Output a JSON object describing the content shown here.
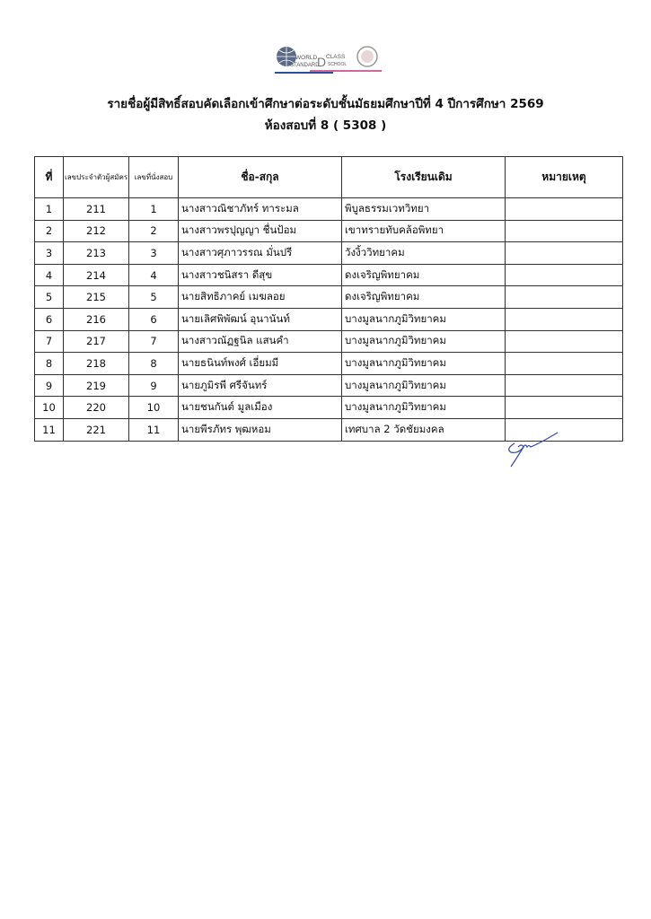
{
  "logo": {
    "text_line1": "WORLD",
    "text_d": "D",
    "text_class": "CLASS",
    "text_standard": "STANDARD",
    "text_school": "SCHOOL"
  },
  "title": "รายชื่อผู้มีสิทธิ์สอบคัดเลือกเข้าศึกษาต่อระดับชั้นมัธยมศึกษาปีที่ 4  ปีการศึกษา 2569",
  "subtitle": "ห้องสอบที่ 8 ( 5308 )",
  "table": {
    "headers": [
      "ที่",
      "เลขประจำตัวผู้สมัคร",
      "เลขที่นั่งสอบ",
      "ชื่อ-สกุล",
      "โรงเรียนเดิม",
      "หมายเหตุ"
    ],
    "rows": [
      {
        "no": "1",
        "applicant_id": "211",
        "seat": "1",
        "name": "นางสาวณิชาภัทร์ ทาระมล",
        "school": "พิบูลธรรมเวทวิทยา",
        "note": ""
      },
      {
        "no": "2",
        "applicant_id": "212",
        "seat": "2",
        "name": "นางสาวพรปุญญา ชื่นป้อม",
        "school": "เขาทรายทับคล้อพิทยา",
        "note": ""
      },
      {
        "no": "3",
        "applicant_id": "213",
        "seat": "3",
        "name": "นางสาวศุภาวรรณ มั่นปรี",
        "school": "วังงิ้ววิทยาคม",
        "note": ""
      },
      {
        "no": "4",
        "applicant_id": "214",
        "seat": "4",
        "name": "นางสาวชนิสรา ดีสุข",
        "school": "ดงเจริญพิทยาคม",
        "note": ""
      },
      {
        "no": "5",
        "applicant_id": "215",
        "seat": "5",
        "name": "นายสิทธิภาคย์ เมฆลอย",
        "school": "ดงเจริญพิทยาคม",
        "note": ""
      },
      {
        "no": "6",
        "applicant_id": "216",
        "seat": "6",
        "name": "นายเลิศพิพัฒน์ อุนานันท์",
        "school": "บางมูลนากภูมิวิทยาคม",
        "note": ""
      },
      {
        "no": "7",
        "applicant_id": "217",
        "seat": "7",
        "name": "นางสาวณัฏฐนิล แสนคำ",
        "school": "บางมูลนากภูมิวิทยาคม",
        "note": ""
      },
      {
        "no": "8",
        "applicant_id": "218",
        "seat": "8",
        "name": "นายธนินท์พงศ์ เอี่ยมมี",
        "school": "บางมูลนากภูมิวิทยาคม",
        "note": ""
      },
      {
        "no": "9",
        "applicant_id": "219",
        "seat": "9",
        "name": "นายภูมิรพี ศรีจันทร์",
        "school": "บางมูลนากภูมิวิทยาคม",
        "note": ""
      },
      {
        "no": "10",
        "applicant_id": "220",
        "seat": "10",
        "name": "นายชนกันต์ มูลเมือง",
        "school": "บางมูลนากภูมิวิทยาคม",
        "note": ""
      },
      {
        "no": "11",
        "applicant_id": "221",
        "seat": "11",
        "name": "นายพีรภัทร พุฒหอม",
        "school": "เทศบาล 2 วัดชัยมงคล",
        "note": ""
      }
    ]
  },
  "colors": {
    "signature_ink": "#3b4fa8",
    "logo_blue": "#2a4f9c",
    "logo_pink": "#d0689a"
  }
}
